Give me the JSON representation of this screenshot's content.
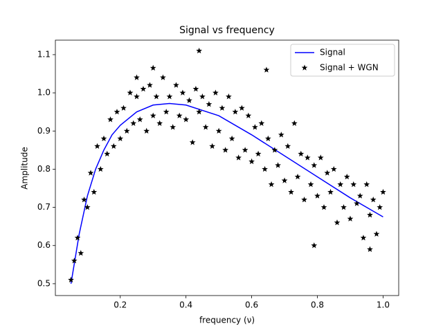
{
  "chart_data": {
    "type": "scatter",
    "title": "Signal vs frequency",
    "x_label": "frequency (ν)",
    "y_label": "Amplitude",
    "xlim": [
      0.0025,
      1.0475
    ],
    "ylim": [
      0.469,
      1.138
    ],
    "xticks": [
      0.2,
      0.4,
      0.6,
      0.8,
      {
        "value": 1.0,
        "label": "1.0"
      }
    ],
    "yticks": [
      0.5,
      0.6,
      0.7,
      0.8,
      0.9,
      {
        "value": 1.0,
        "label": "1.0"
      },
      1.1
    ],
    "grid": false,
    "legend": "upper right",
    "series": [
      {
        "name": "Signal",
        "color": "#0000ff",
        "type": "line",
        "x": [
          0.05,
          0.075,
          0.1,
          0.125,
          0.15,
          0.175,
          0.2,
          0.25,
          0.3,
          0.35,
          0.4,
          0.5,
          0.6,
          0.7,
          0.8,
          0.9,
          1.0
        ],
        "values": [
          0.5,
          0.63,
          0.73,
          0.8,
          0.85,
          0.89,
          0.915,
          0.95,
          0.968,
          0.972,
          0.968,
          0.94,
          0.89,
          0.835,
          0.78,
          0.725,
          0.675
        ]
      },
      {
        "name": "Signal + WGN",
        "color": "#000000",
        "type": "scatter",
        "marker": "star",
        "x": [
          0.05,
          0.06,
          0.07,
          0.08,
          0.09,
          0.1,
          0.11,
          0.12,
          0.13,
          0.14,
          0.15,
          0.16,
          0.17,
          0.18,
          0.19,
          0.2,
          0.21,
          0.22,
          0.23,
          0.24,
          0.25,
          0.26,
          0.27,
          0.28,
          0.29,
          0.3,
          0.31,
          0.32,
          0.33,
          0.34,
          0.35,
          0.36,
          0.37,
          0.38,
          0.39,
          0.4,
          0.41,
          0.42,
          0.43,
          0.44,
          0.45,
          0.46,
          0.47,
          0.48,
          0.49,
          0.5,
          0.51,
          0.52,
          0.53,
          0.54,
          0.55,
          0.56,
          0.57,
          0.58,
          0.59,
          0.6,
          0.61,
          0.62,
          0.63,
          0.64,
          0.65,
          0.66,
          0.67,
          0.68,
          0.69,
          0.7,
          0.71,
          0.72,
          0.73,
          0.74,
          0.75,
          0.76,
          0.77,
          0.78,
          0.79,
          0.8,
          0.81,
          0.82,
          0.83,
          0.84,
          0.85,
          0.86,
          0.87,
          0.88,
          0.89,
          0.9,
          0.91,
          0.92,
          0.93,
          0.94,
          0.95,
          0.96,
          0.97,
          0.98,
          0.99,
          1.0,
          0.44,
          0.645,
          0.3,
          0.79,
          0.96,
          0.25
        ],
        "values": [
          0.51,
          0.56,
          0.62,
          0.58,
          0.72,
          0.7,
          0.79,
          0.74,
          0.86,
          0.8,
          0.88,
          0.84,
          0.93,
          0.86,
          0.95,
          0.88,
          0.96,
          0.9,
          1.0,
          0.92,
          0.99,
          0.93,
          1.01,
          0.9,
          1.02,
          0.94,
          0.99,
          0.92,
          1.04,
          0.95,
          0.99,
          0.91,
          1.02,
          0.94,
          1.0,
          0.93,
          0.98,
          0.87,
          1.01,
          0.95,
          0.99,
          0.91,
          0.97,
          0.86,
          1.0,
          0.9,
          0.96,
          0.85,
          0.99,
          0.88,
          0.95,
          0.83,
          0.96,
          0.85,
          0.94,
          0.82,
          0.91,
          0.84,
          0.92,
          0.8,
          0.88,
          0.76,
          0.85,
          0.81,
          0.89,
          0.77,
          0.86,
          0.74,
          0.92,
          0.78,
          0.84,
          0.72,
          0.83,
          0.76,
          0.81,
          0.73,
          0.83,
          0.7,
          0.79,
          0.74,
          0.8,
          0.66,
          0.76,
          0.7,
          0.78,
          0.67,
          0.76,
          0.71,
          0.73,
          0.62,
          0.76,
          0.68,
          0.72,
          0.63,
          0.7,
          0.74,
          1.11,
          1.06,
          1.065,
          0.6,
          0.59,
          1.04
        ]
      }
    ]
  }
}
